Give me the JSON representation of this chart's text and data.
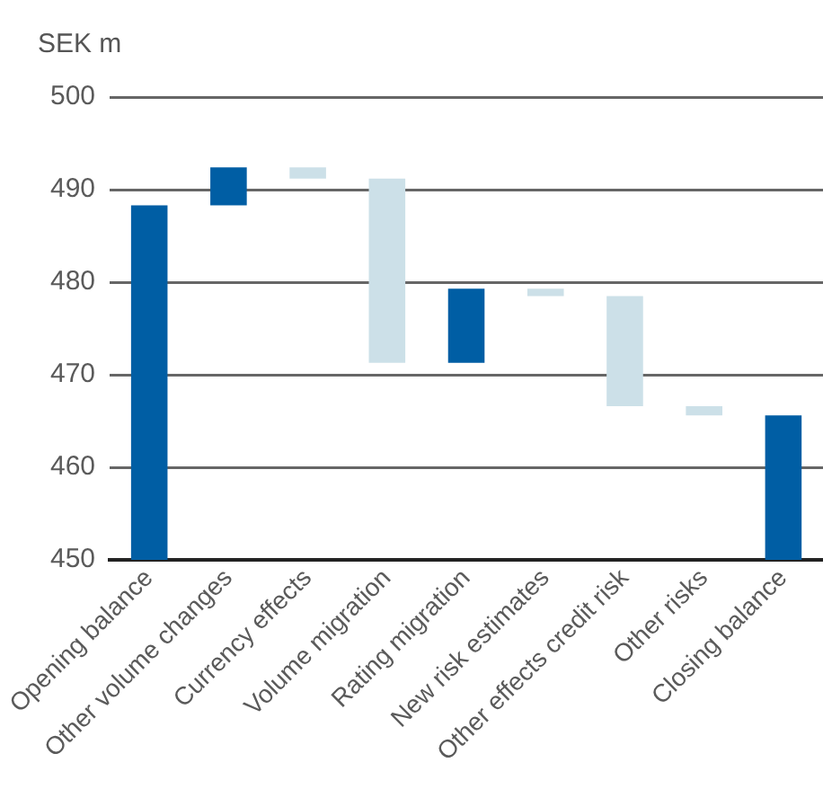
{
  "chart_data": {
    "type": "bar",
    "ylabel": "SEK m",
    "categories": [
      "Opening balance",
      "Other volume changes",
      "Currency effects",
      "Volume migration",
      "Rating migration",
      "New risk estimates",
      "Other effects credit risk",
      "Other risks",
      "Closing balance"
    ],
    "values": [
      488.3,
      4.1,
      -1.2,
      -19.9,
      8.0,
      -0.8,
      -11.9,
      -1.0,
      465.6
    ],
    "base": [
      null,
      488.3,
      492.4,
      491.2,
      471.3,
      479.3,
      478.5,
      466.6,
      null
    ],
    "colors": [
      "#005ea4",
      "#005ea4",
      "#cce0e8",
      "#cce0e8",
      "#005ea4",
      "#cce0e8",
      "#cce0e8",
      "#cce0e8",
      "#005ea4"
    ],
    "ylim": [
      450,
      500
    ],
    "yticks": [
      450,
      460,
      470,
      480,
      490,
      500
    ],
    "grid": "y"
  }
}
